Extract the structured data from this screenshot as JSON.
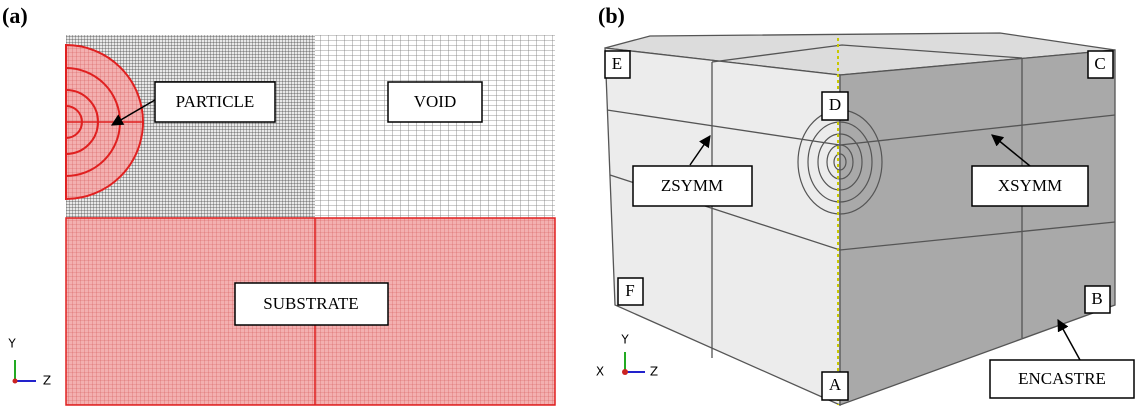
{
  "panel_a": {
    "label": "(a)",
    "callouts": [
      "PARTICLE",
      "VOID",
      "SUBSTRATE"
    ],
    "axes": [
      "Y",
      "Z"
    ]
  },
  "panel_b": {
    "label": "(b)",
    "points": [
      "E",
      "C",
      "D",
      "F",
      "B",
      "A"
    ],
    "callouts": [
      "ZSYMM",
      "XSYMM",
      "ENCASTRE"
    ],
    "axes": [
      "Y",
      "X",
      "Z"
    ]
  }
}
